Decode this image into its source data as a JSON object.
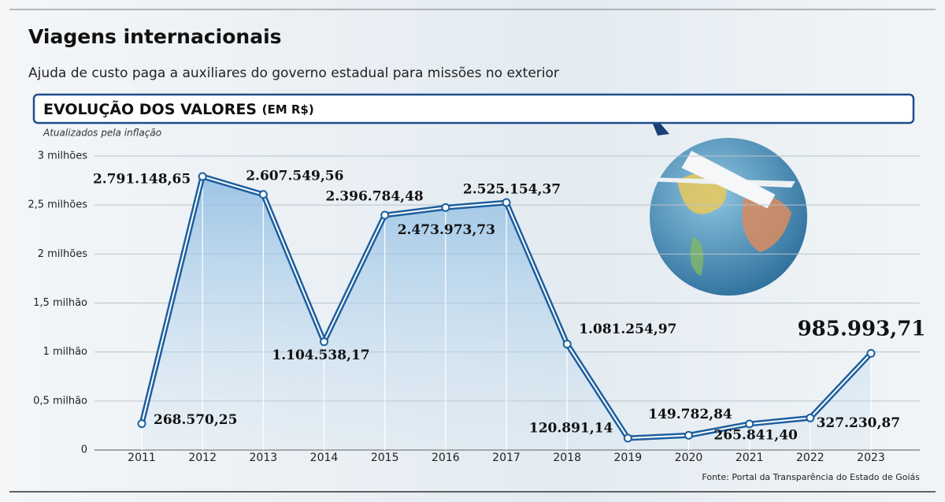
{
  "chart_data": {
    "type": "line",
    "title": "Viagens internacionais",
    "subtitle": "Ajuda de custo paga a auxiliares do governo estadual para missões no exterior",
    "section_title": "EVOLUÇÃO DOS VALORES",
    "unit_note": "(EM R$)",
    "note": "Atualizados pela inflação",
    "source": "Fonte: Portal da Transparência do Estado de Goiás",
    "categories": [
      "2011",
      "2012",
      "2013",
      "2014",
      "2015",
      "2016",
      "2017",
      "2018",
      "2019",
      "2020",
      "2021",
      "2022",
      "2023"
    ],
    "series": [
      {
        "name": "Ajuda de custo",
        "color": "#1d5f9e",
        "values": [
          268570.25,
          2791148.65,
          2607549.56,
          1104538.17,
          2396784.48,
          2473973.73,
          2525154.37,
          1081254.97,
          120891.14,
          149782.84,
          265841.4,
          327230.87,
          985993.71
        ],
        "value_labels": [
          "268.570,25",
          "2.791.148,65",
          "2.607.549,56",
          "1.104.538,17",
          "2.396.784,48",
          "2.473.973,73",
          "2.525.154,37",
          "1.081.254,97",
          "120.891,14",
          "149.782,84",
          "265.841,40",
          "327.230,87",
          "985.993,71"
        ]
      }
    ],
    "ylim": [
      0,
      3000000
    ],
    "yticks": [
      {
        "value": 0,
        "label": "0"
      },
      {
        "value": 500000,
        "label": "0,5 milhão"
      },
      {
        "value": 1000000,
        "label": "1 milhão"
      },
      {
        "value": 1500000,
        "label": "1,5 milhão"
      },
      {
        "value": 2000000,
        "label": "2 milhões"
      },
      {
        "value": 2500000,
        "label": "2,5 milhões"
      },
      {
        "value": 3000000,
        "label": "3 milhões"
      }
    ],
    "grid": true
  }
}
